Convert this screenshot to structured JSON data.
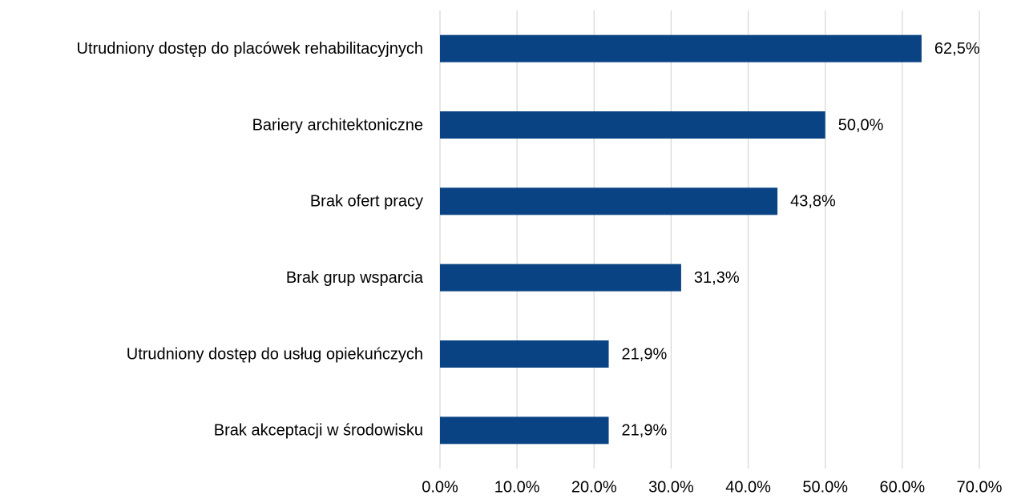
{
  "chart_data": {
    "type": "barh",
    "categories": [
      "Utrudniony dostęp do placówek rehabilitacyjnych",
      "Bariery architektoniczne",
      "Brak ofert pracy",
      "Brak grup wsparcia",
      "Utrudniony dostęp do usług opiekuńczych",
      "Brak akceptacji w środowisku"
    ],
    "values": [
      62.5,
      50.0,
      43.8,
      31.3,
      21.9,
      21.9
    ],
    "value_labels": [
      "62,5%",
      "50,0%",
      "43,8%",
      "31,3%",
      "21,9%",
      "21,9%"
    ],
    "color": "#0a4383",
    "xlim": [
      0,
      70
    ],
    "xticks": [
      {
        "value": 0,
        "label": "0.0%"
      },
      {
        "value": 10,
        "label": "10.0%"
      },
      {
        "value": 20,
        "label": "20.0%"
      },
      {
        "value": 30,
        "label": "30.0%"
      },
      {
        "value": 40,
        "label": "40.0%"
      },
      {
        "value": 50,
        "label": "50.0%"
      },
      {
        "value": 60,
        "label": "60.0%"
      },
      {
        "value": 70,
        "label": "70.0%"
      }
    ],
    "grid": true
  }
}
